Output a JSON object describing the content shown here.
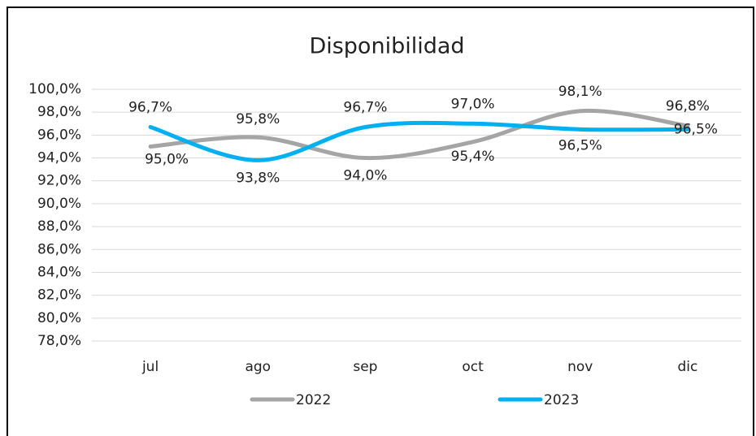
{
  "chart_data": {
    "type": "line",
    "title": "Disponibilidad",
    "categories": [
      "jul",
      "ago",
      "sep",
      "oct",
      "nov",
      "dic"
    ],
    "series": [
      {
        "name": "2022",
        "color": "#a5a5a5",
        "values": [
          95.0,
          95.8,
          94.0,
          95.4,
          98.1,
          96.8
        ],
        "value_labels": [
          "95,0%",
          "95,8%",
          "94,0%",
          "95,4%",
          "98,1%",
          "96,8%"
        ]
      },
      {
        "name": "2023",
        "color": "#00b0f0",
        "values": [
          96.7,
          93.8,
          96.7,
          97.0,
          96.5,
          96.5
        ],
        "value_labels": [
          "96,7%",
          "93,8%",
          "96,7%",
          "97,0%",
          "96,5%",
          "96,5%"
        ]
      }
    ],
    "ylim": [
      78,
      100
    ],
    "yticks": [
      {
        "value": 78,
        "label": "78,0%"
      },
      {
        "value": 80,
        "label": "80,0%"
      },
      {
        "value": 82,
        "label": "82,0%"
      },
      {
        "value": 84,
        "label": "84,0%"
      },
      {
        "value": 86,
        "label": "86,0%"
      },
      {
        "value": 88,
        "label": "88,0%"
      },
      {
        "value": 90,
        "label": "90,0%"
      },
      {
        "value": 92,
        "label": "92,0%"
      },
      {
        "value": 94,
        "label": "94,0%"
      },
      {
        "value": 96,
        "label": "96,0%"
      },
      {
        "value": 98,
        "label": "98,0%"
      },
      {
        "value": 100,
        "label": "100,0%"
      }
    ],
    "grid": true,
    "legend": "bottom"
  }
}
